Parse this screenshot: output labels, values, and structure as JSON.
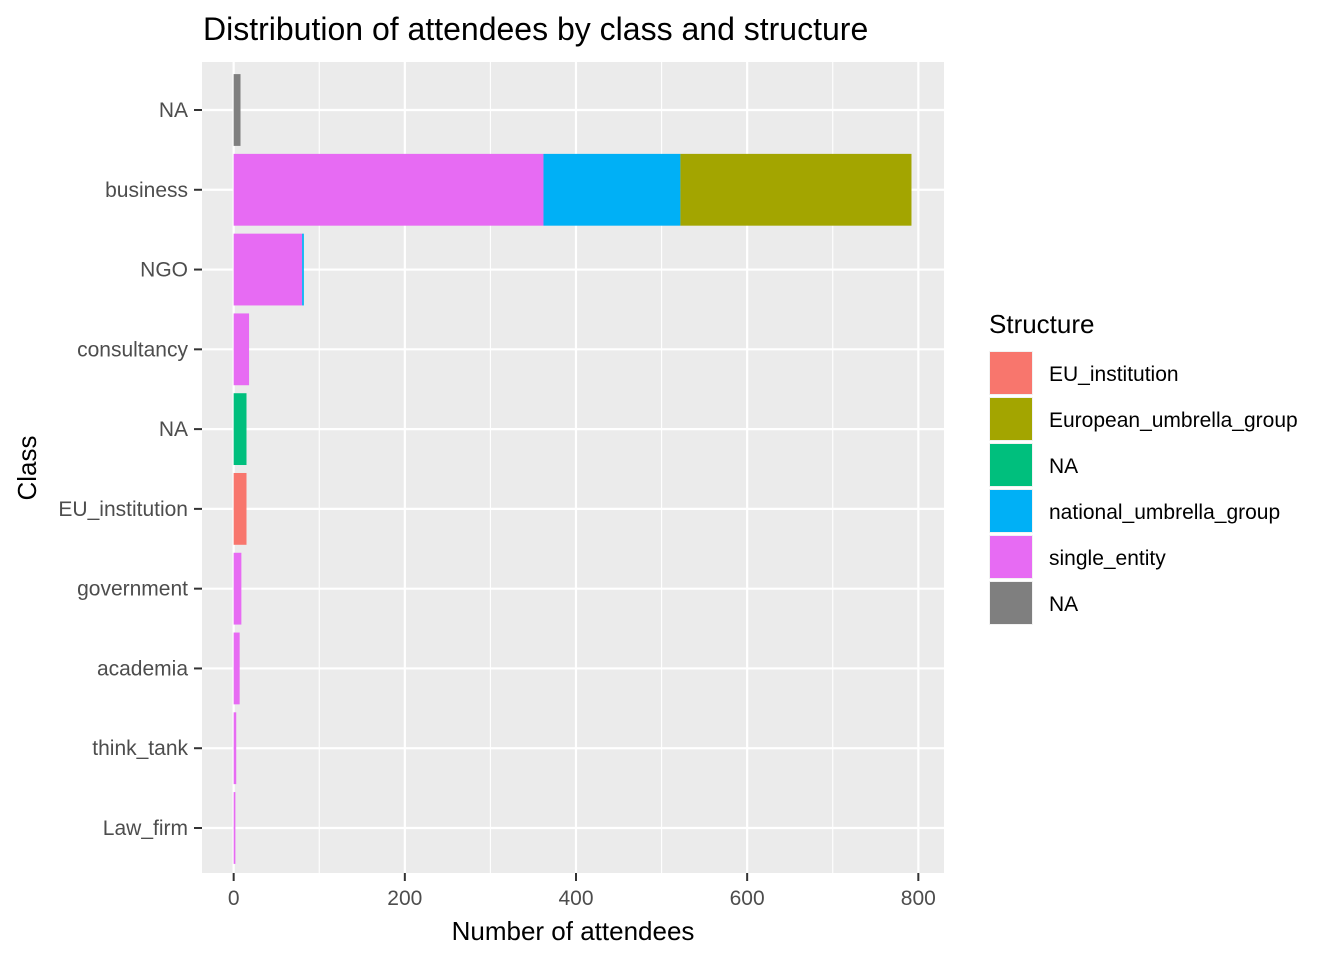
{
  "chart_data": {
    "type": "bar",
    "orientation": "horizontal",
    "stacked": true,
    "title": "Distribution of attendees by class and structure",
    "xlabel": "Number of attendees",
    "ylabel": "Class",
    "xlim": [
      -37,
      830
    ],
    "xticks": [
      0,
      200,
      400,
      600,
      800
    ],
    "grid": true,
    "categories": [
      "NA",
      "business",
      "NGO",
      "consultancy",
      "NA",
      "EU_institution",
      "government",
      "academia",
      "think_tank",
      "Law_firm"
    ],
    "series": [
      {
        "name": "EU_institution",
        "color": "#F8766D",
        "values": [
          0,
          0,
          0,
          0,
          0,
          15,
          0,
          0,
          0,
          0
        ]
      },
      {
        "name": "European_umbrella_group",
        "color": "#A3A500",
        "values": [
          0,
          270,
          0,
          0,
          0,
          0,
          0,
          0,
          0,
          0
        ]
      },
      {
        "name": "NA",
        "color": "#00BF7D",
        "values": [
          0,
          0,
          0,
          0,
          15,
          0,
          0,
          0,
          0,
          0
        ]
      },
      {
        "name": "national_umbrella_group",
        "color": "#00B0F6",
        "values": [
          0,
          160,
          2,
          0,
          0,
          0,
          0,
          0,
          0,
          0
        ]
      },
      {
        "name": "single_entity",
        "color": "#E76BF3",
        "values": [
          0,
          362,
          80,
          18,
          0,
          0,
          9,
          7,
          3,
          2
        ]
      },
      {
        "name": "NA",
        "color": "#7F7F7F",
        "values": [
          8,
          0,
          0,
          0,
          0,
          0,
          0,
          0,
          0,
          0
        ]
      }
    ],
    "legend": {
      "title": "Structure",
      "position": "right"
    }
  }
}
